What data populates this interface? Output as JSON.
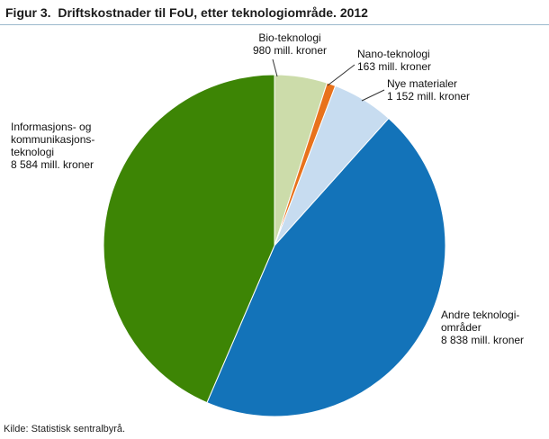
{
  "title": "Figur 3.  Driftskostnader til FoU, etter teknologiområde. 2012",
  "source": "Kilde: Statistisk sentralbyrå.",
  "chart_data": {
    "type": "pie",
    "title": "Driftskostnader til FoU, etter teknologiområde. 2012",
    "figure_number": "Figur 3.",
    "unit": "mill. kroner",
    "start_angle_deg": 0,
    "direction": "clockwise",
    "legend_position": "callouts",
    "slice_border_color": "#ffffff",
    "slices": [
      {
        "id": "bio-teknologi",
        "label": "Bio-teknologi",
        "value": 980,
        "color": "#ccdcaa",
        "callout_lines": [
          "Bio-teknologi",
          "980 mill. kroner"
        ]
      },
      {
        "id": "nano-teknologi",
        "label": "Nano-teknologi",
        "value": 163,
        "color": "#e8721c",
        "callout_lines": [
          "Nano-teknologi",
          "163 mill. kroner"
        ]
      },
      {
        "id": "nye-materialer",
        "label": "Nye materialer",
        "value": 1152,
        "color": "#c7dcf0",
        "callout_lines": [
          "Nye materialer",
          "1 152 mill. kroner"
        ]
      },
      {
        "id": "andre-teknologiomrader",
        "label": "Andre teknologiområder",
        "value": 8838,
        "color": "#1373b9",
        "callout_lines": [
          "Andre teknologi-",
          "områder",
          "8 838 mill. kroner"
        ]
      },
      {
        "id": "informasjons-og-kommunikasjonsteknologi",
        "label": "Informasjons- og kommunikasjonsteknologi",
        "value": 8584,
        "color": "#3d8505",
        "callout_lines": [
          "Informasjons- og",
          "kommunikasjons-",
          "teknologi",
          "8 584 mill. kroner"
        ]
      }
    ]
  }
}
